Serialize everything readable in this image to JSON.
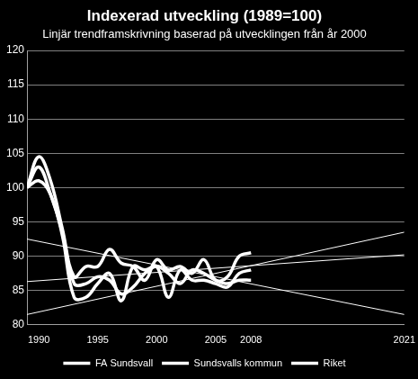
{
  "chart_data": {
    "type": "line",
    "title": "Indexerad utveckling (1989=100)",
    "subtitle": "Linjär trendframskrivning baserad på utvecklingen från år 2000",
    "x": [
      1989,
      1990,
      1991,
      1992,
      1993,
      1994,
      1995,
      1996,
      1997,
      1998,
      1999,
      2000,
      2001,
      2002,
      2003,
      2004,
      2005,
      2006,
      2007,
      2008
    ],
    "trend_x": [
      1989,
      2021
    ],
    "series": [
      {
        "name": "FA Sundsvall",
        "color": "#ffffff",
        "values": [
          100,
          104.5,
          101,
          94,
          87,
          88.5,
          88.5,
          91,
          89,
          88.5,
          86.5,
          89.5,
          88,
          88.5,
          87.5,
          89.5,
          86.5,
          87,
          90,
          90.5
        ],
        "trend": [
          81.5,
          93.5
        ]
      },
      {
        "name": "Sundsvalls kommun",
        "color": "#ffffff",
        "values": [
          100,
          101,
          99,
          93,
          84,
          84,
          86,
          87.5,
          83.5,
          88.5,
          88,
          88.5,
          84,
          88,
          86.5,
          86.5,
          86,
          85.5,
          87.5,
          88
        ],
        "trend": [
          86.3,
          90.2
        ]
      },
      {
        "name": "Riket",
        "color": "#ffffff",
        "values": [
          100,
          103,
          99,
          93.5,
          86,
          86,
          87,
          86.5,
          84.5,
          85.5,
          87.5,
          88.5,
          87.5,
          86,
          88,
          87.5,
          86.5,
          86,
          86.5,
          86.5
        ],
        "trend": [
          92.5,
          81.5
        ]
      }
    ],
    "xlim": [
      1989,
      2021
    ],
    "xticks": [
      1990,
      1995,
      2000,
      2005,
      2008,
      2021
    ],
    "ylim": [
      80,
      120
    ],
    "yticks": [
      80,
      85,
      90,
      95,
      100,
      105,
      110,
      115,
      120
    ],
    "grid": "y",
    "legend": "bottom"
  }
}
